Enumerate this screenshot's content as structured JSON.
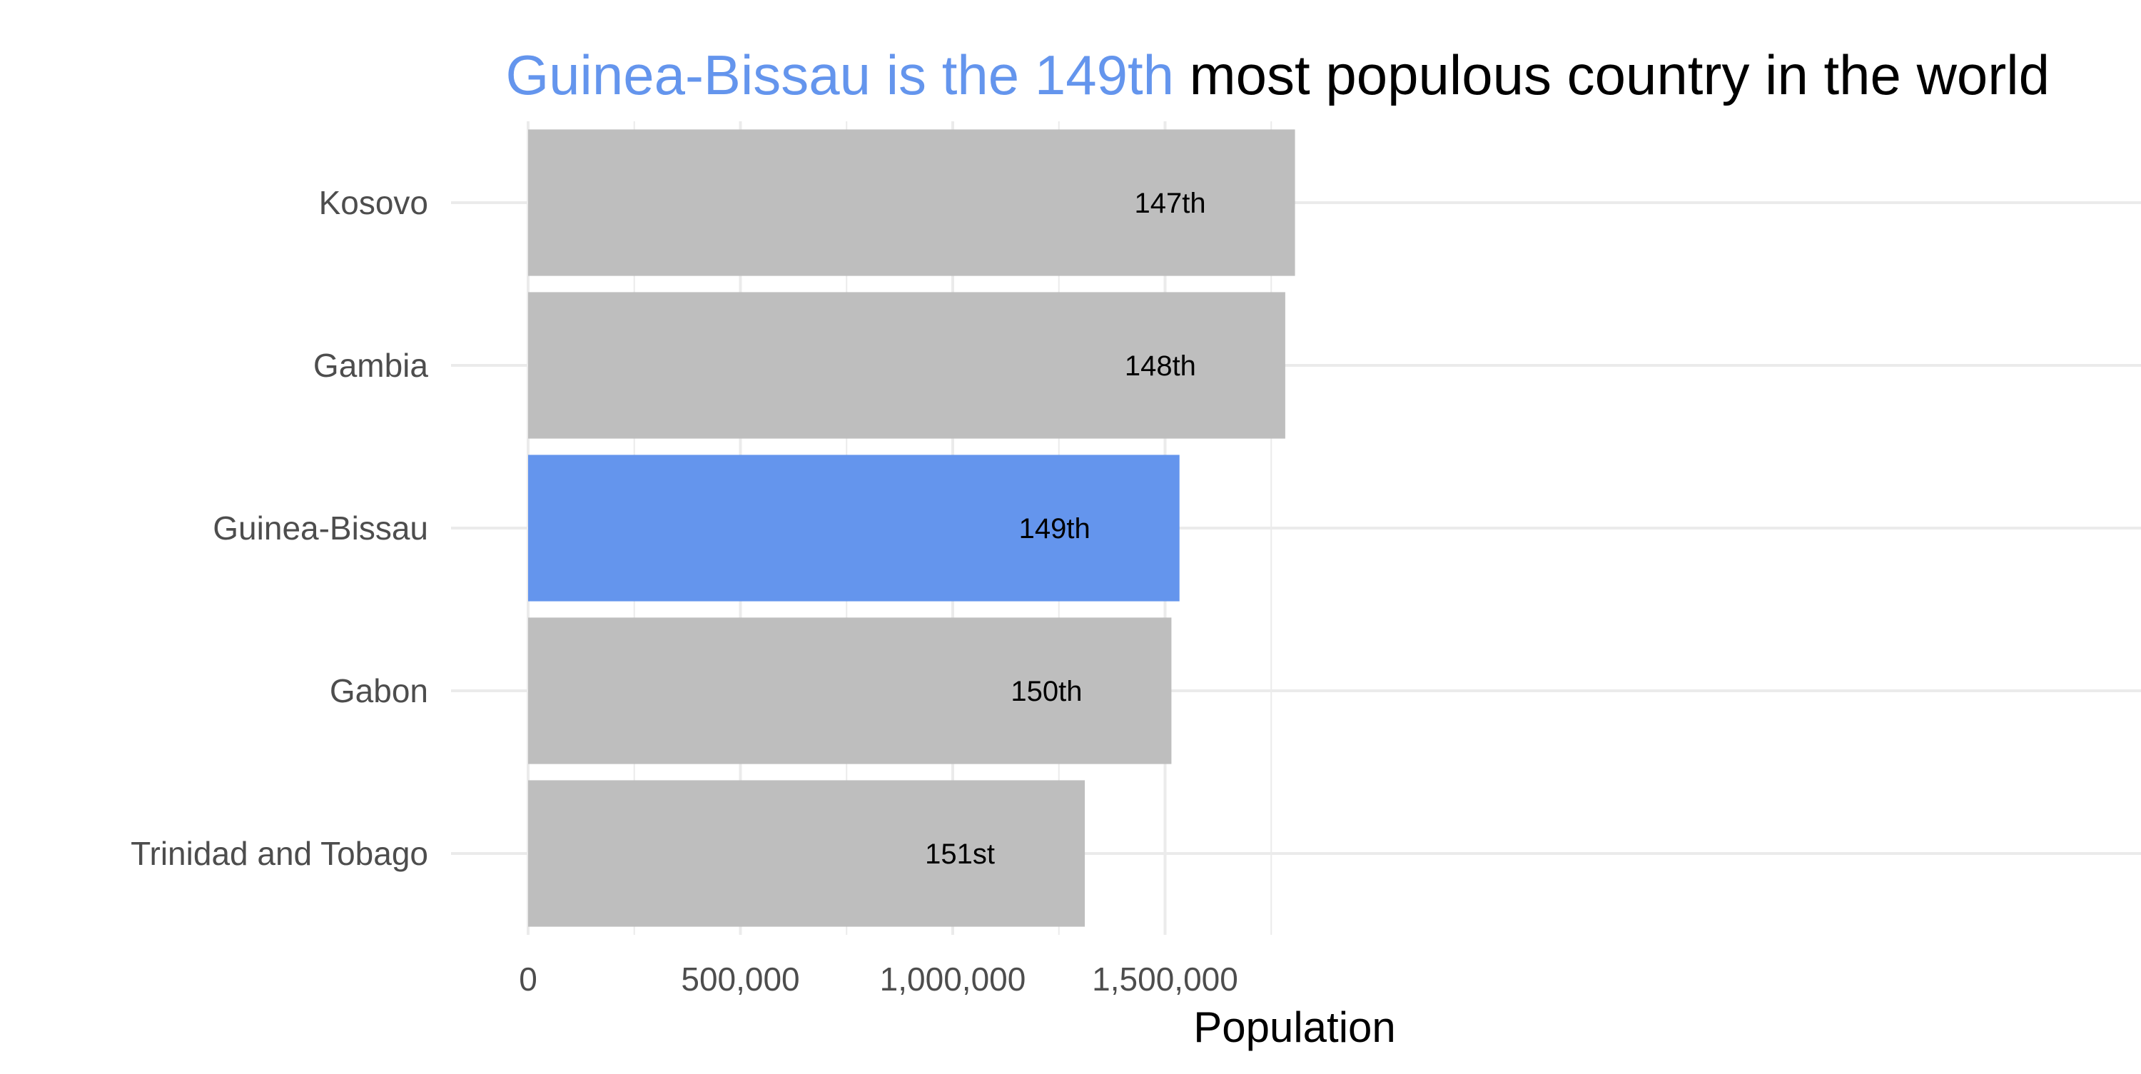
{
  "chart_data": {
    "type": "bar",
    "orientation": "horizontal",
    "title": {
      "highlight": "Guinea-Bissau is the 149th",
      "rest": " most populous country in the world"
    },
    "xlabel": "Population",
    "ylabel": "",
    "xlim": [
      0,
      1800000
    ],
    "x_ticks": [
      0,
      500000,
      1000000,
      1500000
    ],
    "x_tick_labels": [
      "0",
      "500,000",
      "1,000,000",
      "1,500,000"
    ],
    "categories": [
      "Kosovo",
      "Gambia",
      "Guinea-Bissau",
      "Gabon",
      "Trinidad and Tobago"
    ],
    "values": [
      1806000,
      1783000,
      1534000,
      1515000,
      1311000
    ],
    "rank_labels": [
      "147th",
      "148th",
      "149th",
      "150th",
      "151st"
    ],
    "highlight_index": 2,
    "grid": true,
    "legend": "none",
    "colors": {
      "highlight": "#6495ED",
      "default": "#BEBEBE",
      "grid": "#EBEBEB",
      "text": "#000000",
      "tick_text": "#4D4D4D"
    }
  }
}
